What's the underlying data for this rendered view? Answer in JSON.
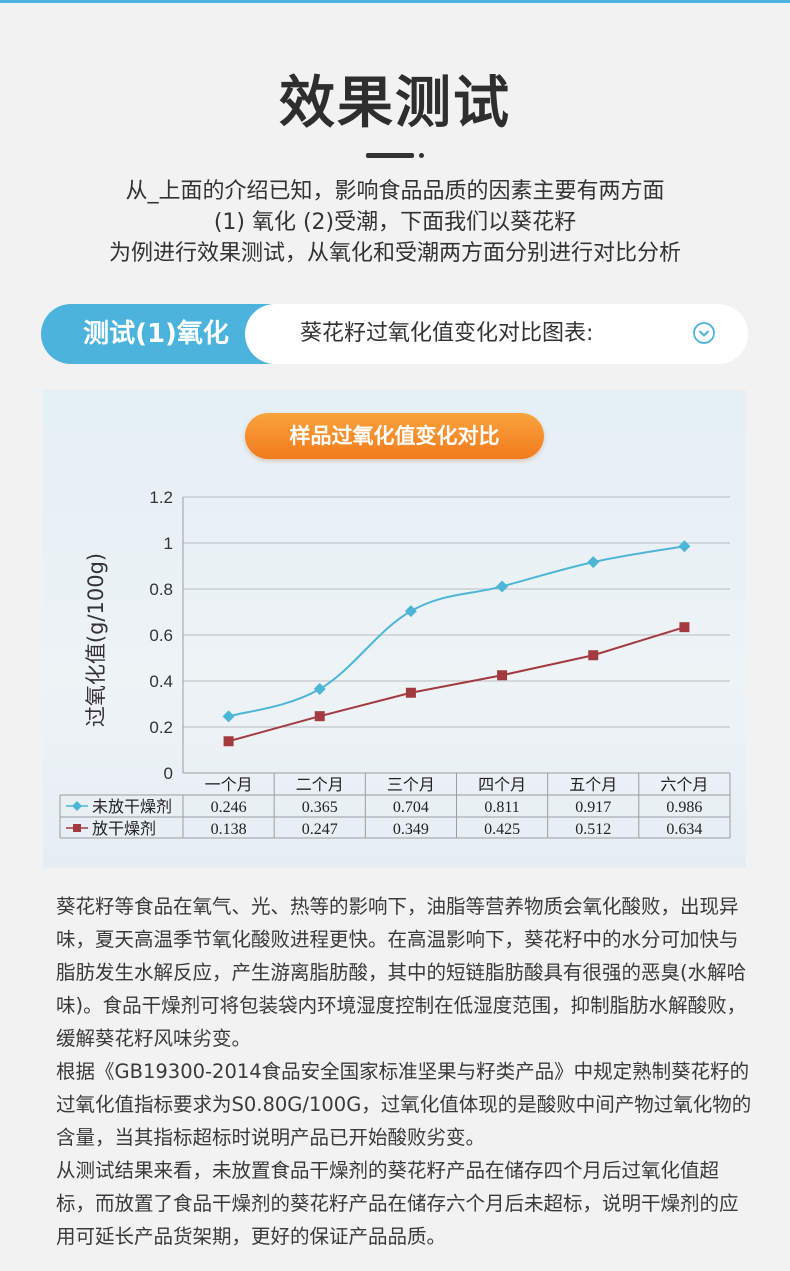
{
  "page": {
    "title": "效果测试",
    "intro_lines": [
      "从_上面的介绍已知，影响食品品质的因素主要有两方面",
      "(1) 氧化  (2)受潮，下面我们以葵花籽",
      "为例进行效果测试，从氧化和受潮两方面分别进行对比分析"
    ],
    "section": {
      "label": "测试(1)氧化",
      "description": "葵花籽过氧化值变化对比图表:",
      "expand_icon": "chevron-down-circle-icon"
    },
    "colors": {
      "accent_blue": "#4bb3dc",
      "badge_orange": "#f48a25",
      "series_unprotected": "#4db6d6",
      "series_protected": "#a33a3f"
    },
    "paragraphs": [
      "葵花籽等食品在氧气、光、热等的影响下，油脂等营养物质会氧化酸败，出现异味，夏天高温季节氧化酸败进程更快。在高温影响下，葵花籽中的水分可加快与脂肪发生水解反应，产生游离脂肪酸，其中的短链脂肪酸具有很强的恶臭(水解哈味)。食品干燥剂可将包装袋内环境湿度控制在低湿度范围，抑制脂肪水解酸败，缓解葵花籽风味劣变。",
      "根据《GB19300-2014食品安全国家标准坚果与籽类产品》中规定熟制葵花籽的过氧化值指标要求为S0.80G/100G，过氧化值体现的是酸败中间产物过氧化物的含量，当其指标超标时说明产品已开始酸败劣变。",
      "从测试结果来看，未放置食品干燥剂的葵花籽产品在储存四个月后过氧化值超标，而放置了食品干燥剂的葵花籽产品在储存六个月后未超标，说明干燥剂的应用可延长产品货架期，更好的保证产品品质。"
    ]
  },
  "chart_data": {
    "type": "line",
    "title": "样品过氧化值变化对比",
    "ylabel": "过氧化值(g/100g)",
    "xlabel": "",
    "ylim": [
      0,
      1.2
    ],
    "yticks": [
      "0",
      "0.2",
      "0.4",
      "0.6",
      "0.8",
      "1",
      "1.2"
    ],
    "categories": [
      "一个月",
      "二个月",
      "三个月",
      "四个月",
      "五个月",
      "六个月"
    ],
    "grid": true,
    "legend": "data-table",
    "series": [
      {
        "name": "未放干燥剂",
        "marker": "diamond",
        "values": [
          0.246,
          0.365,
          0.704,
          0.811,
          0.917,
          0.986
        ]
      },
      {
        "name": "放干燥剂",
        "marker": "square",
        "values": [
          0.138,
          0.247,
          0.349,
          0.425,
          0.512,
          0.634
        ]
      }
    ],
    "table_values": [
      [
        "0.246",
        "0.365",
        "0.704",
        "0.811",
        "0.917",
        "0.986"
      ],
      [
        "0.138",
        "0.247",
        "0.349",
        "0.425",
        "0.512",
        "0.634"
      ]
    ]
  }
}
